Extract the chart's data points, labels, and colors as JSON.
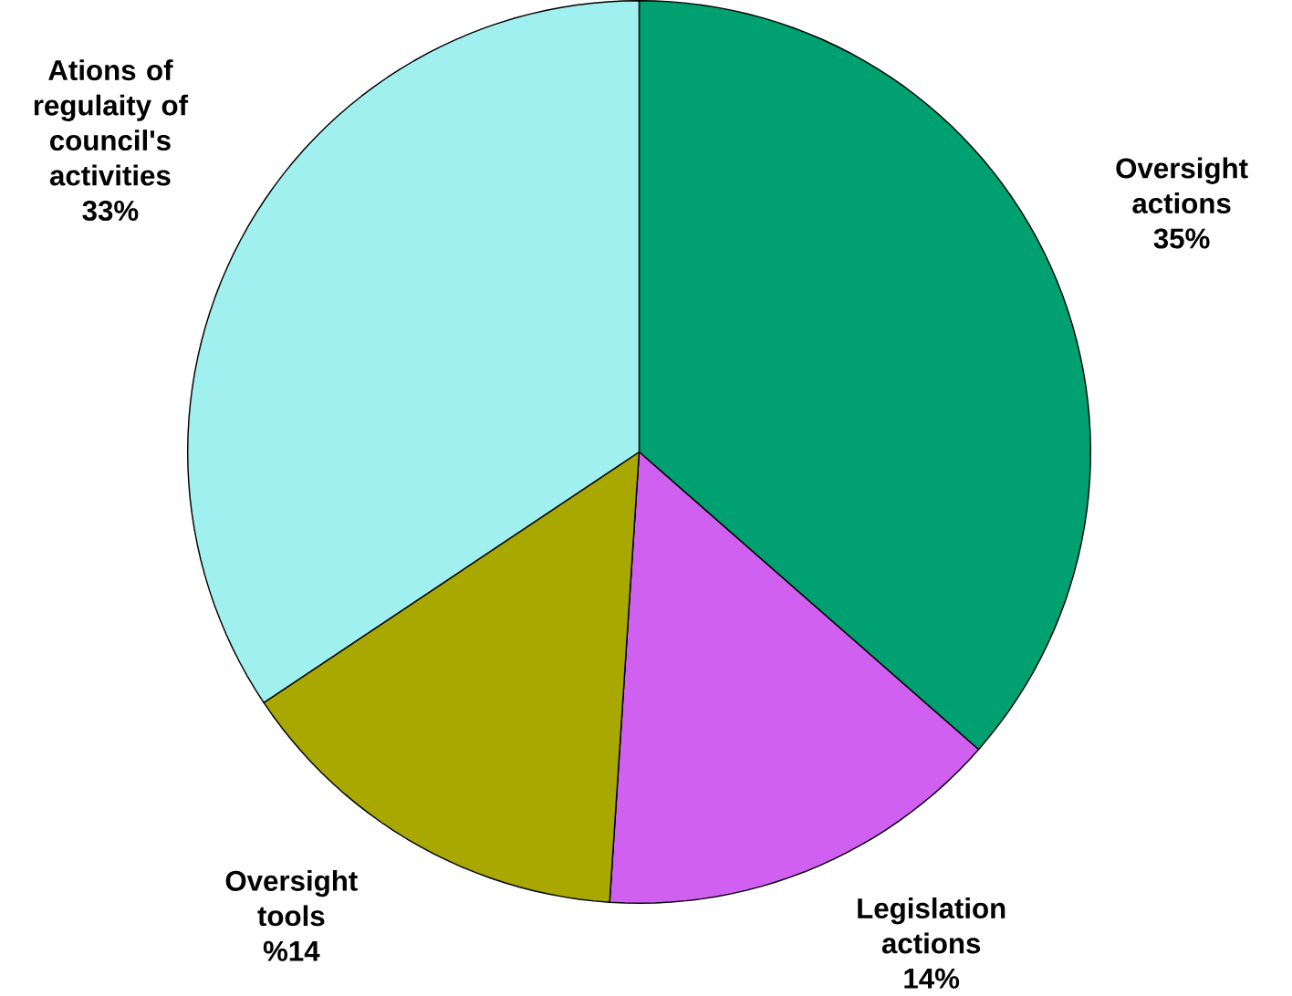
{
  "chart_data": {
    "type": "pie",
    "categories": [
      "Oversight actions",
      "Legislation actions",
      "Oversight tools",
      "Ations of regulaity of council's activities"
    ],
    "values": [
      35,
      14,
      14,
      33
    ],
    "value_labels": [
      "35%",
      "14%",
      "%14",
      "33%"
    ],
    "colors": [
      "#00a070",
      "#d060f0",
      "#a8a800",
      "#a0f0f0"
    ]
  }
}
